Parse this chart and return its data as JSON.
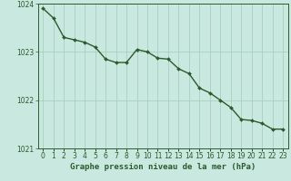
{
  "x": [
    0,
    1,
    2,
    3,
    4,
    5,
    6,
    7,
    8,
    9,
    10,
    11,
    12,
    13,
    14,
    15,
    16,
    17,
    18,
    19,
    20,
    21,
    22,
    23
  ],
  "y": [
    1023.9,
    1023.7,
    1023.3,
    1023.25,
    1023.2,
    1023.1,
    1022.85,
    1022.78,
    1022.78,
    1023.05,
    1023.0,
    1022.87,
    1022.85,
    1022.65,
    1022.55,
    1022.25,
    1022.15,
    1022.0,
    1021.85,
    1021.6,
    1021.58,
    1021.52,
    1021.4,
    1021.4
  ],
  "ylim": [
    1021.0,
    1024.0
  ],
  "yticks": [
    1021,
    1022,
    1023,
    1024
  ],
  "xticks": [
    0,
    1,
    2,
    3,
    4,
    5,
    6,
    7,
    8,
    9,
    10,
    11,
    12,
    13,
    14,
    15,
    16,
    17,
    18,
    19,
    20,
    21,
    22,
    23
  ],
  "xlabel": "Graphe pression niveau de la mer (hPa)",
  "line_color": "#2d5a2d",
  "marker_color": "#2d5a2d",
  "bg_color": "#c8e8e0",
  "grid_color": "#a0ccb8",
  "axis_color": "#2d5a2d",
  "tick_label_color": "#2d5a2d",
  "xlabel_color": "#2d5a2d",
  "xlabel_fontsize": 6.5,
  "tick_fontsize": 5.5,
  "marker_size": 2.0,
  "line_width": 1.0
}
